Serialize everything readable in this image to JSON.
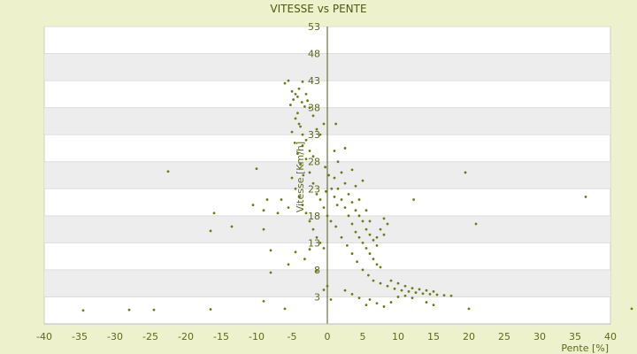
{
  "chart_data": {
    "type": "scatter",
    "title": "VITESSE vs PENTE",
    "xlabel": "Pente [%]",
    "ylabel": "Vitesse [Km/h]",
    "xlim": [
      -40,
      40
    ],
    "ylim": [
      -2,
      53
    ],
    "xticks": [
      -40,
      -35,
      -30,
      -25,
      -20,
      -15,
      -10,
      -5,
      0,
      5,
      10,
      15,
      20,
      25,
      30,
      35,
      40
    ],
    "yticks": [
      3,
      8,
      13,
      18,
      23,
      28,
      33,
      38,
      43,
      48,
      53
    ],
    "grid": "horizontal alternating bands",
    "colors": {
      "point": "#6b7d16",
      "band": "#ededed",
      "frame": "#cccccc",
      "background": "#eef2cc"
    },
    "series": [
      {
        "values": [
          [
            -34.5,
            0.5
          ],
          [
            -28,
            0.6
          ],
          [
            -24.5,
            0.6
          ],
          [
            -16.5,
            0.7
          ],
          [
            -22.5,
            26.2
          ],
          [
            -10,
            26.7
          ],
          [
            -16.5,
            15.2
          ],
          [
            -16,
            18.5
          ],
          [
            -13.5,
            16
          ],
          [
            -9,
            19
          ],
          [
            -8.5,
            21
          ],
          [
            -10.5,
            20
          ],
          [
            -9,
            15.5
          ],
          [
            -8,
            11.6
          ],
          [
            -8,
            7.5
          ],
          [
            -9,
            2.2
          ],
          [
            -6,
            0.8
          ],
          [
            -5.5,
            9
          ],
          [
            -4.5,
            11.3
          ],
          [
            -3.2,
            10
          ],
          [
            -2.5,
            11.8
          ],
          [
            -1.5,
            7.8
          ],
          [
            -0.5,
            4.3
          ],
          [
            0,
            5
          ],
          [
            0.5,
            2.5
          ],
          [
            -6,
            42.5
          ],
          [
            -5.5,
            43
          ],
          [
            -5,
            41
          ],
          [
            -4.5,
            40.5
          ],
          [
            -4,
            41.5
          ],
          [
            -3.5,
            42.8
          ],
          [
            -3,
            40.5
          ],
          [
            -2.5,
            38
          ],
          [
            -2,
            36.5
          ],
          [
            -1.5,
            34
          ],
          [
            -1,
            33
          ],
          [
            -0.5,
            35
          ],
          [
            -4.2,
            37
          ],
          [
            -3.8,
            34.5
          ],
          [
            -3.5,
            31
          ],
          [
            -3,
            28.5
          ],
          [
            -2.5,
            26
          ],
          [
            -2,
            24
          ],
          [
            -1.5,
            22
          ],
          [
            -1,
            21
          ],
          [
            -0.5,
            19.5
          ],
          [
            0,
            18
          ],
          [
            0.5,
            17
          ],
          [
            -5,
            25
          ],
          [
            -4.5,
            23
          ],
          [
            -4,
            21.5
          ],
          [
            -3.5,
            20
          ],
          [
            -3,
            18.5
          ],
          [
            -2.5,
            17
          ],
          [
            -2,
            15.5
          ],
          [
            -1.5,
            14
          ],
          [
            -1,
            13
          ],
          [
            -0.5,
            12
          ],
          [
            -5.5,
            19.5
          ],
          [
            -6.5,
            21
          ],
          [
            -7,
            18.5
          ],
          [
            1,
            30
          ],
          [
            1.5,
            28
          ],
          [
            2,
            26
          ],
          [
            2.5,
            24
          ],
          [
            3,
            22
          ],
          [
            3.5,
            20.5
          ],
          [
            4,
            19
          ],
          [
            4.5,
            18
          ],
          [
            5,
            17
          ],
          [
            5.5,
            15.5
          ],
          [
            6,
            14.5
          ],
          [
            6.5,
            13.5
          ],
          [
            7,
            12.5
          ],
          [
            1,
            25
          ],
          [
            1.5,
            23
          ],
          [
            2,
            21
          ],
          [
            2.5,
            19.5
          ],
          [
            3,
            18
          ],
          [
            3.5,
            16.5
          ],
          [
            4,
            15
          ],
          [
            4.5,
            14
          ],
          [
            5,
            13
          ],
          [
            5.5,
            12
          ],
          [
            6,
            11
          ],
          [
            6.5,
            10
          ],
          [
            7,
            9
          ],
          [
            7.5,
            8.5
          ],
          [
            1.2,
            16
          ],
          [
            2,
            14
          ],
          [
            2.8,
            12.5
          ],
          [
            3.5,
            11
          ],
          [
            4.2,
            9.5
          ],
          [
            5,
            8
          ],
          [
            5.8,
            7
          ],
          [
            6.5,
            6
          ],
          [
            7.5,
            5.5
          ],
          [
            8.5,
            5
          ],
          [
            9.5,
            4.5
          ],
          [
            10.5,
            4.2
          ],
          [
            11.5,
            4
          ],
          [
            12.5,
            3.8
          ],
          [
            13.5,
            3.6
          ],
          [
            14.5,
            3.5
          ],
          [
            15.5,
            3.4
          ],
          [
            16.5,
            3.3
          ],
          [
            17.5,
            3.2
          ],
          [
            8,
            17.5
          ],
          [
            8.5,
            16.5
          ],
          [
            7.5,
            15.5
          ],
          [
            8,
            14.5
          ],
          [
            7,
            14
          ],
          [
            6,
            17
          ],
          [
            5.5,
            19
          ],
          [
            4.5,
            21
          ],
          [
            4,
            23.5
          ],
          [
            5,
            24.5
          ],
          [
            3.5,
            26.5
          ],
          [
            2.5,
            30.5
          ],
          [
            1.2,
            35
          ],
          [
            9,
            6
          ],
          [
            10,
            5.5
          ],
          [
            11,
            5
          ],
          [
            12,
            4.6
          ],
          [
            13,
            4.4
          ],
          [
            14,
            4.2
          ],
          [
            15,
            4
          ],
          [
            10,
            3
          ],
          [
            11,
            3.2
          ],
          [
            12,
            2.8
          ],
          [
            9,
            2
          ],
          [
            8,
            1.2
          ],
          [
            7,
            1.8
          ],
          [
            6,
            2.5
          ],
          [
            5.5,
            1.5
          ],
          [
            4.5,
            2.8
          ],
          [
            3.5,
            3.5
          ],
          [
            2.5,
            4.2
          ],
          [
            14,
            2
          ],
          [
            15,
            1.5
          ],
          [
            12.2,
            21
          ],
          [
            19.5,
            26
          ],
          [
            21,
            16.5
          ],
          [
            20,
            0.8
          ],
          [
            36.5,
            21.5
          ],
          [
            43,
            0.8
          ],
          [
            -5.2,
            38.5
          ],
          [
            -4.8,
            39.5
          ],
          [
            -4.2,
            40
          ],
          [
            -3.6,
            39
          ],
          [
            -3.2,
            38.2
          ],
          [
            -2.8,
            39.3
          ],
          [
            -4.5,
            36
          ],
          [
            -4,
            35
          ],
          [
            -3.5,
            33
          ],
          [
            -3,
            32
          ],
          [
            -2.5,
            30
          ],
          [
            -2,
            29
          ],
          [
            -5,
            33.5
          ],
          [
            -4.6,
            31.5
          ],
          [
            -4.2,
            29.5
          ],
          [
            -3.8,
            27.5
          ],
          [
            -3.4,
            25.5
          ],
          [
            -0.3,
            27
          ],
          [
            0.2,
            25.5
          ],
          [
            0.6,
            23
          ],
          [
            1,
            21.5
          ],
          [
            1.4,
            20
          ],
          [
            -0.2,
            22.5
          ]
        ]
      }
    ]
  }
}
